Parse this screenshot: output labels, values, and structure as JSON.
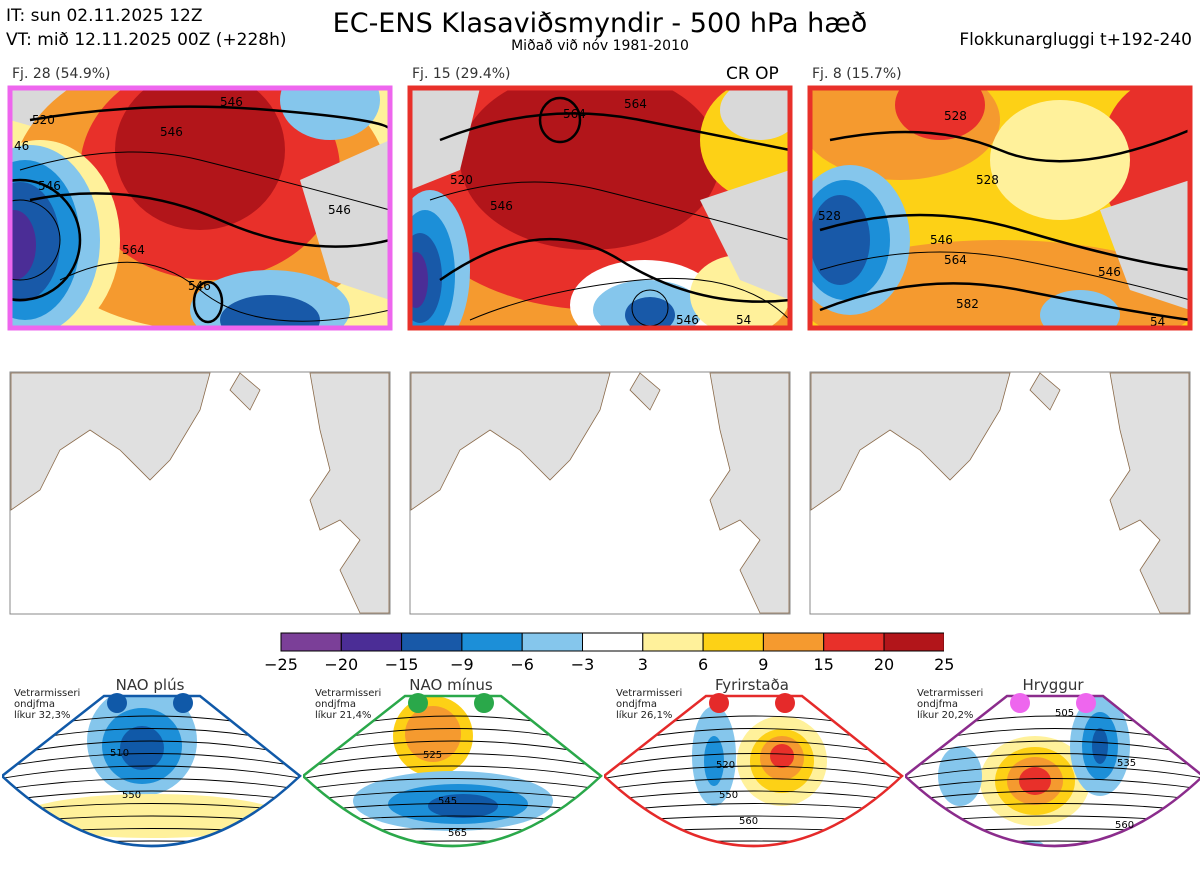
{
  "header": {
    "it_line": "IT: sun 02.11.2025 12Z",
    "vt_line": "VT: mið 12.11.2025 00Z  (+228h)",
    "title": "EC-ENS Klasaviðsmyndir - 500 hPa hæð",
    "subtitle": "Miðað við nóv 1981-2010",
    "window": "Flokkunargluggi t+192-240"
  },
  "clusters": [
    {
      "label": "Fj. 28 (54.9%)",
      "border_color": "#ee66ee",
      "contours": [
        "520",
        "546",
        "546",
        "546",
        "564",
        "546",
        "46",
        "546"
      ]
    },
    {
      "label": "Fj. 15 (29.4%)",
      "border_color": "#e8302a",
      "extra": "CR OP",
      "contours": [
        "564",
        "564",
        "520",
        "546",
        "546",
        "54"
      ]
    },
    {
      "label": "Fj. 8 (15.7%)",
      "border_color": "#e8302a",
      "contours": [
        "528",
        "528",
        "528",
        "546",
        "564",
        "582",
        "546",
        "54"
      ]
    }
  ],
  "colorbar": {
    "labels": [
      "−25",
      "−20",
      "−15",
      "−9",
      "−6",
      "−3",
      "3",
      "6",
      "9",
      "15",
      "20",
      "25"
    ],
    "colors": [
      "#7b3f98",
      "#4b2d96",
      "#1859a8",
      "#1c8fd8",
      "#85c6ec",
      "#ffffff",
      "#fff19b",
      "#fdd116",
      "#f59a2f",
      "#e8302a",
      "#b2151a"
    ]
  },
  "regimes": [
    {
      "name": "NAO plús",
      "line1": "Vetrarmisseri",
      "line2": "ondjfma",
      "line3": "líkur 32,3%",
      "color": "#1059a8",
      "dot": "#1059a8",
      "contours": [
        "510",
        "550"
      ]
    },
    {
      "name": "NAO mínus",
      "line1": "Vetrarmisseri",
      "line2": "ondjfma",
      "line3": "líkur 21,4%",
      "color": "#2aa84a",
      "dot": "#2aa84a",
      "contours": [
        "525",
        "545",
        "565"
      ]
    },
    {
      "name": "Fyrirstaða",
      "line1": "Vetrarmisseri",
      "line2": "ondjfma",
      "line3": "líkur 26,1%",
      "color": "#e52a2a",
      "dot": "#e52a2a",
      "contours": [
        "520",
        "550",
        "560"
      ]
    },
    {
      "name": "Hryggur",
      "line1": "Vetrarmisseri",
      "line2": "ondjfma",
      "line3": "líkur 20,2%",
      "color": "#8b2c8c",
      "dot": "#ee66ee",
      "contours": [
        "505",
        "535",
        "560"
      ]
    }
  ]
}
